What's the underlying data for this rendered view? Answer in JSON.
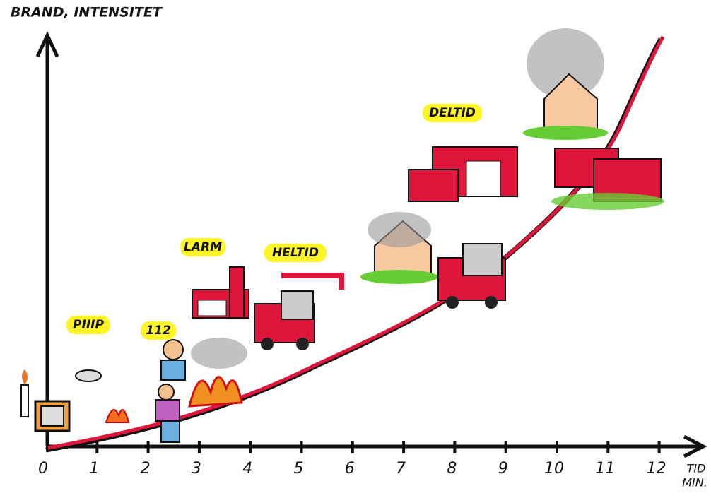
{
  "y_axis_label": "BRAND, INTENSITET",
  "x_axis_label": [
    "TID",
    "MIN."
  ],
  "x_ticks": [
    "0",
    "1",
    "2",
    "3",
    "4",
    "5",
    "6",
    "7",
    "8",
    "9",
    "10",
    "11",
    "12"
  ],
  "callouts": [
    "PIIIP",
    "112",
    "LARM",
    "HELTID",
    "DELTID"
  ]
}
